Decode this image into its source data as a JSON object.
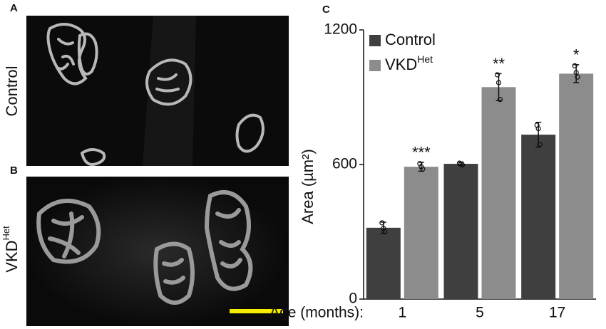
{
  "figure": {
    "panel_labels": [
      "A",
      "B",
      "C"
    ],
    "row_labels": [
      {
        "text": "Control"
      },
      {
        "text": "VKD",
        "superscript": "Het"
      }
    ]
  },
  "chart_data": {
    "type": "bar",
    "y_label": "Area (µm²)",
    "x_label": "Age (months):",
    "categories": [
      "1",
      "5",
      "17"
    ],
    "series": [
      {
        "name": "Control",
        "color": "#3f3f3f",
        "values": [
          318,
          603,
          733
        ],
        "errors": [
          25,
          8,
          55
        ],
        "points": [
          [
            340,
            315,
            300
          ],
          [
            606,
            601,
            598
          ],
          [
            775,
            760,
            690
          ]
        ]
      },
      {
        "name": "VKD",
        "name_superscript": "Het",
        "color": "#8c8c8c",
        "values": [
          590,
          945,
          1005
        ],
        "errors": [
          20,
          60,
          40
        ],
        "points": [
          [
            604,
            590,
            580
          ],
          [
            1000,
            965,
            890
          ],
          [
            1040,
            1010,
            990
          ]
        ],
        "significance": [
          "***",
          "**",
          "*"
        ]
      }
    ],
    "ylim": [
      0,
      1200
    ],
    "yticks": [
      0,
      600,
      1200
    ],
    "legend": "upper left"
  }
}
